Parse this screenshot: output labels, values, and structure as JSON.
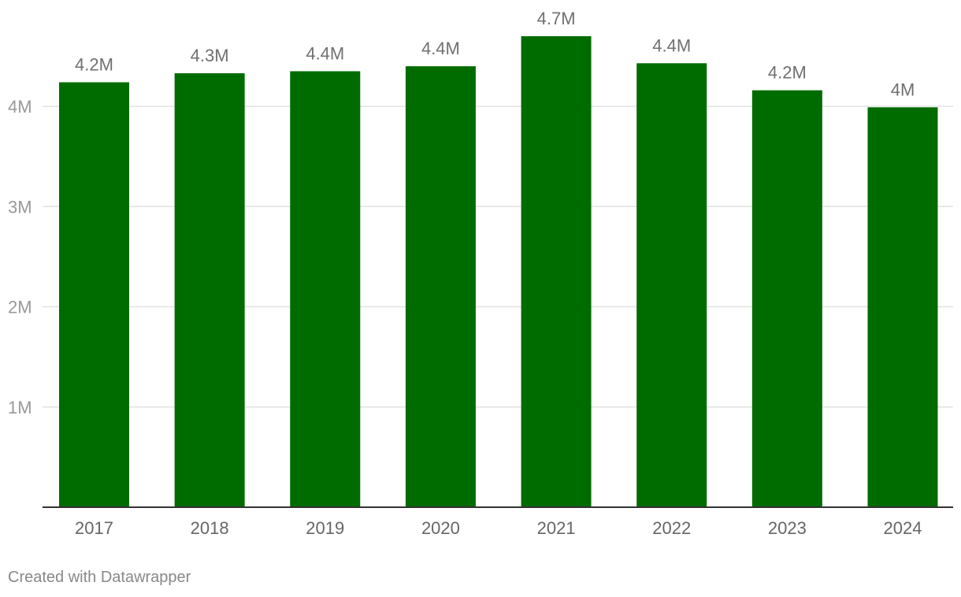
{
  "chart_data": {
    "type": "bar",
    "title": "",
    "xlabel": "",
    "ylabel": "",
    "categories": [
      "2017",
      "2018",
      "2019",
      "2020",
      "2021",
      "2022",
      "2023",
      "2024"
    ],
    "values": [
      4240000,
      4330000,
      4350000,
      4400000,
      4700000,
      4430000,
      4160000,
      3990000
    ],
    "data_labels": [
      "4.2M",
      "4.3M",
      "4.4M",
      "4.4M",
      "4.7M",
      "4.4M",
      "4.2M",
      "4M"
    ],
    "ylim": [
      0,
      5000000
    ],
    "yticks": [
      1000000,
      2000000,
      3000000,
      4000000
    ],
    "ytick_labels": [
      "1M",
      "2M",
      "3M",
      "4M"
    ],
    "grid": true,
    "legend": "none",
    "bar_color": "#006c00",
    "colors": {
      "grid": "#e2e2e2",
      "axis": "#333333",
      "tick_text": "#999999",
      "category_text": "#666666",
      "data_label_text": "#707070"
    }
  },
  "footer": {
    "credit": "Created with Datawrapper"
  }
}
